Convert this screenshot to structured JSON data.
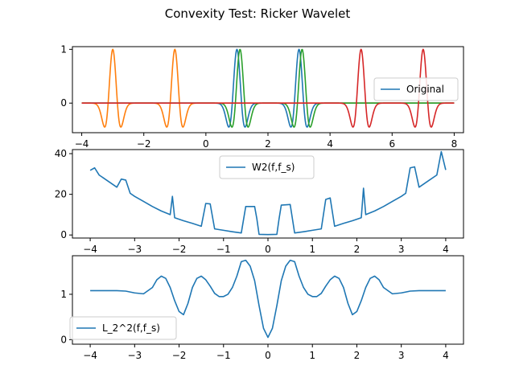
{
  "figure": {
    "title": "Convexity Test: Ricker Wavelet"
  },
  "chart_data": [
    {
      "type": "line",
      "title": "",
      "xlim": [
        -4.3,
        8.3
      ],
      "ylim": [
        -0.55,
        1.05
      ],
      "xticks": [
        -4,
        -2,
        0,
        2,
        4,
        6,
        8
      ],
      "yticks": [
        0,
        1
      ],
      "legend": {
        "placement": "center-right",
        "entries": [
          "Original"
        ]
      },
      "series": [
        {
          "name": "Original",
          "color": "#1f77b4",
          "function": "ricker",
          "centers": [
            1,
            3
          ],
          "sigma": 0.15,
          "x_range": [
            -4,
            8
          ]
        },
        {
          "color": "#ff7f0e",
          "function": "ricker",
          "centers": [
            -3,
            -1
          ],
          "sigma": 0.15,
          "x_range": [
            -4,
            8
          ]
        },
        {
          "color": "#2ca02c",
          "function": "ricker",
          "centers": [
            1.1,
            3.1
          ],
          "sigma": 0.15,
          "x_range": [
            -4,
            8
          ]
        },
        {
          "color": "#d62728",
          "function": "ricker",
          "centers": [
            5,
            7
          ],
          "sigma": 0.15,
          "x_range": [
            -4,
            8
          ]
        }
      ]
    },
    {
      "type": "line",
      "title": "",
      "xlim": [
        -4.4,
        4.4
      ],
      "ylim": [
        -1.5,
        42
      ],
      "xticks": [
        -4,
        -3,
        -2,
        -1,
        0,
        1,
        2,
        3,
        4
      ],
      "yticks": [
        0,
        20,
        40
      ],
      "legend": {
        "placement": "upper-center",
        "entries": [
          "W2(f,f_s)"
        ]
      },
      "series": [
        {
          "name": "W2(f,f_s)",
          "color": "#1f77b4",
          "x": [
            -4,
            -3.9,
            -3.8,
            -3.6,
            -3.4,
            -3.3,
            -3.2,
            -3.1,
            -3.0,
            -2.8,
            -2.6,
            -2.4,
            -2.2,
            -2.15,
            -2.1,
            -1.9,
            -1.7,
            -1.5,
            -1.4,
            -1.3,
            -1.2,
            -1.0,
            -0.8,
            -0.6,
            -0.5,
            -0.3,
            -0.25,
            -0.2,
            0.0,
            0.2,
            0.25,
            0.3,
            0.5,
            0.6,
            0.8,
            1.0,
            1.2,
            1.3,
            1.4,
            1.5,
            1.7,
            1.9,
            2.1,
            2.15,
            2.2,
            2.4,
            2.6,
            2.8,
            3.0,
            3.1,
            3.2,
            3.3,
            3.4,
            3.6,
            3.8,
            3.9,
            4.0
          ],
          "y": [
            31.8,
            33.0,
            29.5,
            26.5,
            23.5,
            27.5,
            27.0,
            20.5,
            19.0,
            16.5,
            14.0,
            11.8,
            10.0,
            19.0,
            8.5,
            7.0,
            5.7,
            4.3,
            15.5,
            15.3,
            3.0,
            2.3,
            1.6,
            1.0,
            14.0,
            14.0,
            8.0,
            0.3,
            0.2,
            0.3,
            8.0,
            14.7,
            15.0,
            1.0,
            1.6,
            2.3,
            3.0,
            17.5,
            18.2,
            4.3,
            5.7,
            7.0,
            8.5,
            23.0,
            10.0,
            11.8,
            14.0,
            16.5,
            19.0,
            20.5,
            33.0,
            33.5,
            23.5,
            26.5,
            29.5,
            41.0,
            32.0
          ]
        }
      ]
    },
    {
      "type": "line",
      "title": "",
      "xlim": [
        -4.4,
        4.4
      ],
      "ylim": [
        -0.1,
        1.85
      ],
      "xticks": [
        -4,
        -3,
        -2,
        -1,
        0,
        1,
        2,
        3,
        4
      ],
      "yticks": [
        0,
        1
      ],
      "legend": {
        "placement": "lower-left",
        "entries": [
          "L_2^2(f,f_s)"
        ]
      },
      "series": [
        {
          "name": "L_2^2(f,f_s)",
          "color": "#1f77b4",
          "x": [
            -4.0,
            -3.4,
            -3.2,
            -3.0,
            -2.8,
            -2.6,
            -2.5,
            -2.4,
            -2.3,
            -2.2,
            -2.1,
            -2.0,
            -1.9,
            -1.8,
            -1.7,
            -1.6,
            -1.5,
            -1.4,
            -1.3,
            -1.2,
            -1.1,
            -1.0,
            -0.9,
            -0.8,
            -0.7,
            -0.6,
            -0.5,
            -0.4,
            -0.3,
            -0.2,
            -0.1,
            0.0,
            0.1,
            0.2,
            0.3,
            0.4,
            0.5,
            0.6,
            0.7,
            0.8,
            0.9,
            1.0,
            1.1,
            1.2,
            1.3,
            1.4,
            1.5,
            1.6,
            1.7,
            1.8,
            1.9,
            2.0,
            2.1,
            2.2,
            2.3,
            2.4,
            2.5,
            2.6,
            2.8,
            3.0,
            3.2,
            3.4,
            4.0
          ],
          "y": [
            1.08,
            1.08,
            1.07,
            1.03,
            1.01,
            1.15,
            1.32,
            1.4,
            1.35,
            1.15,
            0.86,
            0.62,
            0.55,
            0.8,
            1.15,
            1.35,
            1.4,
            1.32,
            1.18,
            1.02,
            0.95,
            0.95,
            1.0,
            1.15,
            1.4,
            1.72,
            1.75,
            1.62,
            1.3,
            0.75,
            0.25,
            0.05,
            0.25,
            0.75,
            1.3,
            1.62,
            1.75,
            1.72,
            1.4,
            1.15,
            1.0,
            0.95,
            0.95,
            1.02,
            1.18,
            1.32,
            1.4,
            1.35,
            1.15,
            0.8,
            0.55,
            0.62,
            0.86,
            1.15,
            1.35,
            1.4,
            1.32,
            1.15,
            1.01,
            1.03,
            1.07,
            1.08,
            1.08
          ]
        }
      ]
    }
  ]
}
